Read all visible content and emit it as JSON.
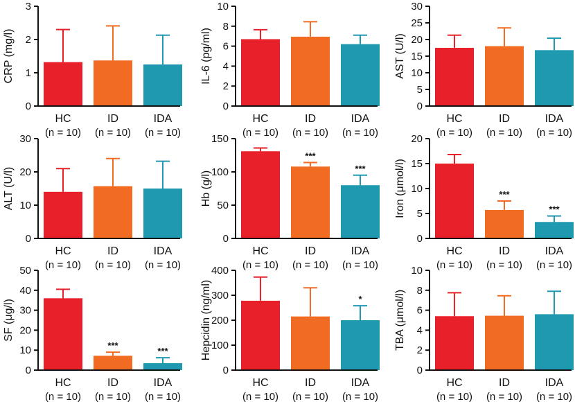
{
  "colors": {
    "HC": "#e8202a",
    "ID": "#f26b22",
    "IDA": "#1f99b0",
    "axis": "#111111"
  },
  "chart_data": [
    {
      "type": "bar",
      "ylabel": "CRP (mg/l)",
      "ylim": [
        0,
        3
      ],
      "yticks": [
        "0",
        "1",
        "2",
        "3"
      ],
      "categories": [
        "HC",
        "ID",
        "IDA"
      ],
      "sublabels": [
        "(n = 10)",
        "(n = 10)",
        "(n = 10)"
      ],
      "values": [
        1.32,
        1.37,
        1.25
      ],
      "errors": [
        0.98,
        1.04,
        0.88
      ],
      "significance": [
        "",
        "",
        ""
      ]
    },
    {
      "type": "bar",
      "ylabel": "IL-6 (pg/ml)",
      "ylim": [
        0,
        10
      ],
      "yticks": [
        "0",
        "2",
        "4",
        "6",
        "8",
        "10"
      ],
      "categories": [
        "HC",
        "ID",
        "IDA"
      ],
      "sublabels": [
        "(n = 10)",
        "(n = 10)",
        "(n = 10)"
      ],
      "values": [
        6.7,
        6.95,
        6.2
      ],
      "errors": [
        0.95,
        1.5,
        0.9
      ],
      "significance": [
        "",
        "",
        ""
      ]
    },
    {
      "type": "bar",
      "ylabel": "AST (U/l)",
      "ylim": [
        0,
        30
      ],
      "yticks": [
        "0",
        "5",
        "10",
        "15",
        "20",
        "25",
        "30"
      ],
      "categories": [
        "HC",
        "ID",
        "IDA"
      ],
      "sublabels": [
        "(n = 10)",
        "(n = 10)",
        "(n = 10)"
      ],
      "values": [
        17.5,
        18.0,
        16.8
      ],
      "errors": [
        3.8,
        5.5,
        3.6
      ],
      "significance": [
        "",
        "",
        ""
      ]
    },
    {
      "type": "bar",
      "ylabel": "ALT (U/l)",
      "ylim": [
        0,
        30
      ],
      "yticks": [
        "0",
        "10",
        "20",
        "30"
      ],
      "categories": [
        "HC",
        "ID",
        "IDA"
      ],
      "sublabels": [
        "(n = 10)",
        "(n = 10)",
        "(n = 10)"
      ],
      "values": [
        14.0,
        15.7,
        15.0
      ],
      "errors": [
        7.0,
        8.3,
        8.2
      ],
      "significance": [
        "",
        "",
        ""
      ]
    },
    {
      "type": "bar",
      "ylabel": "Hb (g/l)",
      "ylim": [
        0,
        150
      ],
      "yticks": [
        "0",
        "50",
        "100",
        "150"
      ],
      "categories": [
        "HC",
        "ID",
        "IDA"
      ],
      "sublabels": [
        "(n = 10)",
        "(n = 10)",
        "(n = 10)"
      ],
      "values": [
        131,
        108,
        80
      ],
      "errors": [
        5,
        6,
        15
      ],
      "significance": [
        "",
        "***",
        "***"
      ]
    },
    {
      "type": "bar",
      "ylabel": "Iron (μmol/l)",
      "ylim": [
        0,
        20
      ],
      "yticks": [
        "0",
        "5",
        "10",
        "15",
        "20"
      ],
      "categories": [
        "HC",
        "ID",
        "IDA"
      ],
      "sublabels": [
        "(n = 10)",
        "(n = 10)",
        "(n = 10)"
      ],
      "values": [
        15.0,
        5.7,
        3.3
      ],
      "errors": [
        1.8,
        1.8,
        1.2
      ],
      "significance": [
        "",
        "***",
        "***"
      ]
    },
    {
      "type": "bar",
      "ylabel": "SF (μg/l)",
      "ylim": [
        0,
        50
      ],
      "yticks": [
        "0",
        "10",
        "20",
        "30",
        "40",
        "50"
      ],
      "categories": [
        "HC",
        "ID",
        "IDA"
      ],
      "sublabels": [
        "(n = 10)",
        "(n = 10)",
        "(n = 10)"
      ],
      "values": [
        36,
        7.2,
        3.5
      ],
      "errors": [
        4.5,
        1.8,
        2.7
      ],
      "significance": [
        "",
        "***",
        "***"
      ]
    },
    {
      "type": "bar",
      "ylabel": "Hepcidin (ng/ml)",
      "ylim": [
        0,
        400
      ],
      "yticks": [
        "0",
        "100",
        "200",
        "300",
        "400"
      ],
      "categories": [
        "HC",
        "ID",
        "IDA"
      ],
      "sublabels": [
        "(n = 10)",
        "(n = 10)",
        "(n = 10)"
      ],
      "values": [
        278,
        215,
        200
      ],
      "errors": [
        95,
        115,
        58
      ],
      "significance": [
        "",
        "",
        "*"
      ]
    },
    {
      "type": "bar",
      "ylabel": "TBA (μmol/l)",
      "ylim": [
        0,
        10
      ],
      "yticks": [
        "0",
        "2",
        "4",
        "6",
        "8",
        "10"
      ],
      "categories": [
        "HC",
        "ID",
        "IDA"
      ],
      "sublabels": [
        "(n = 10)",
        "(n = 10)",
        "(n = 10)"
      ],
      "values": [
        5.4,
        5.45,
        5.6
      ],
      "errors": [
        2.35,
        2.0,
        2.3
      ],
      "significance": [
        "",
        "",
        ""
      ]
    }
  ]
}
